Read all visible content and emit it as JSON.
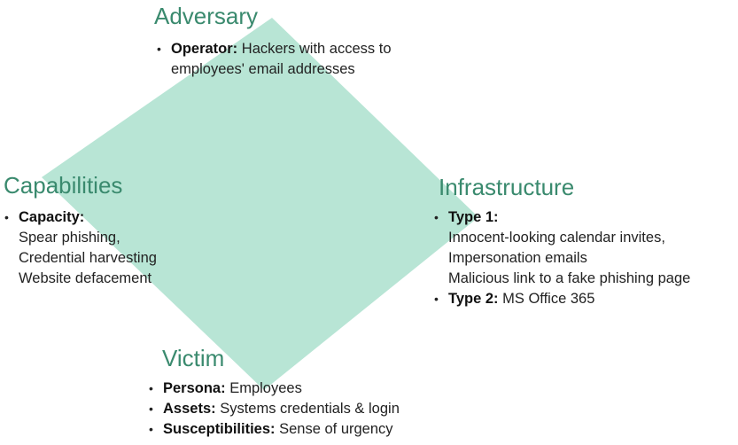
{
  "colors": {
    "diamond_fill": "#b8e5d5",
    "heading": "#3a8a6e",
    "text": "#222222"
  },
  "adversary": {
    "title": "Adversary",
    "items": [
      {
        "label": "Operator:",
        "text": " Hackers with access to",
        "more": [
          "employees' email addresses"
        ]
      }
    ]
  },
  "capabilities": {
    "title": "Capabilities",
    "items": [
      {
        "label": "Capacity:",
        "text": "",
        "more": [
          "Spear phishing,",
          "Credential harvesting",
          "Website defacement"
        ]
      }
    ]
  },
  "infrastructure": {
    "title": "Infrastructure",
    "items": [
      {
        "label": "Type 1:",
        "text": "",
        "more": [
          "Innocent-looking calendar invites,",
          "Impersonation emails",
          "Malicious link to a fake phishing page"
        ]
      },
      {
        "label": "Type 2:",
        "text": " MS Office 365",
        "more": []
      }
    ]
  },
  "victim": {
    "title": "Victim",
    "items": [
      {
        "label": "Persona:",
        "text": " Employees",
        "more": []
      },
      {
        "label": "Assets:",
        "text": " Systems credentials & login",
        "more": []
      },
      {
        "label": "Susceptibilities:",
        "text": " Sense of urgency",
        "more": []
      }
    ]
  }
}
